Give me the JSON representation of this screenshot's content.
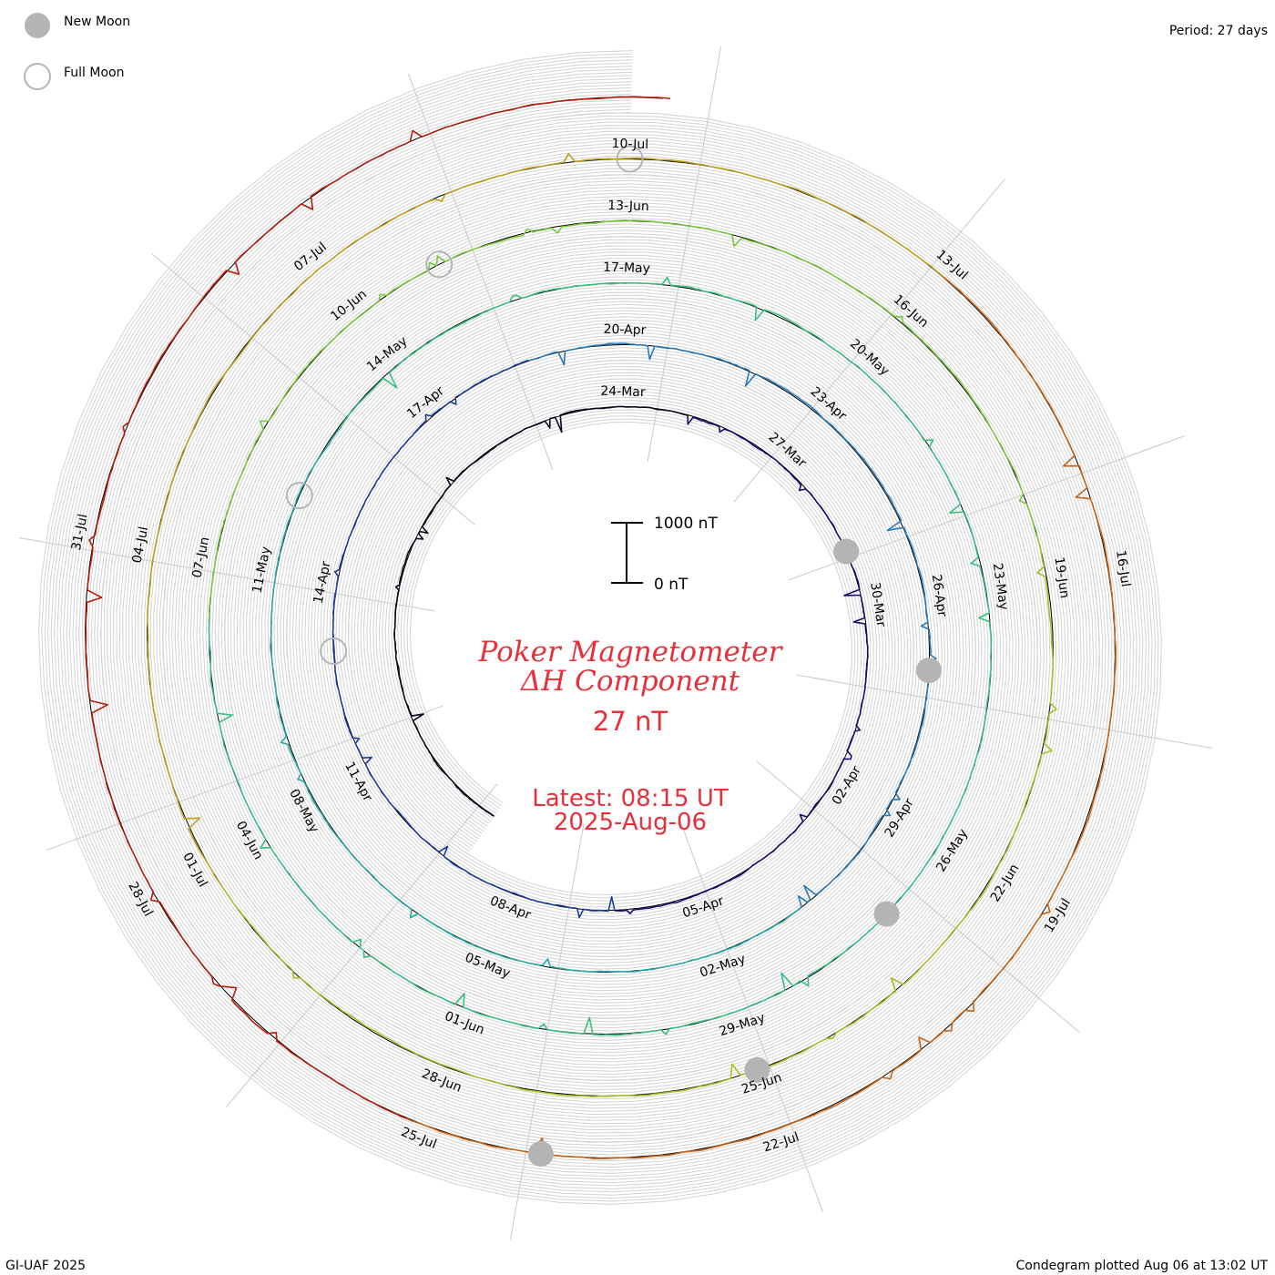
{
  "header": {
    "period": "Period: 27 days"
  },
  "legend": {
    "items": [
      {
        "label": "New Moon",
        "kind": "new-moon",
        "color": "#b4b4b4"
      },
      {
        "label": "Full Moon",
        "kind": "full-moon",
        "color": "#b4b4b4"
      }
    ]
  },
  "footer": {
    "credit": "GI-UAF 2025",
    "plotted": "Condegram plotted Aug 06 at 13:02 UT"
  },
  "chart_data": {
    "type": "condegram-spiral-line",
    "title_line1": "Poker Magnetometer",
    "title_line2": "ΔH Component",
    "current_value": "27 nT",
    "latest_time": "Latest: 08:15 UT",
    "latest_date": "2025-Aug-06",
    "scale_bar": {
      "top_label": "1000 nT",
      "bottom_label": "0 nT",
      "range_nT": [
        0,
        1000
      ]
    },
    "period_days": 27,
    "start_date": "2025-03-13",
    "end_date": "2025-08-06",
    "series_colors": [
      "#0a0a1e",
      "#1e0a6e",
      "#1e3c9c",
      "#2a7ab8",
      "#28a8a4",
      "#3cbe82",
      "#78c83c",
      "#a8be28",
      "#c0a020",
      "#c86414",
      "#b41e0a"
    ],
    "date_labels": [
      "24-Mar",
      "27-Mar",
      "30-Mar",
      "02-Apr",
      "05-Apr",
      "08-Apr",
      "11-Apr",
      "14-Apr",
      "17-Apr",
      "20-Apr",
      "23-Apr",
      "26-Apr",
      "29-Apr",
      "02-May",
      "05-May",
      "08-May",
      "11-May",
      "14-May",
      "17-May",
      "20-May",
      "23-May",
      "26-May",
      "29-May",
      "01-Jun",
      "04-Jun",
      "07-Jun",
      "10-Jun",
      "13-Jun",
      "16-Jun",
      "19-Jun",
      "22-Jun",
      "25-Jun",
      "28-Jun",
      "01-Jul",
      "04-Jul",
      "07-Jul",
      "10-Jul",
      "13-Jul",
      "16-Jul",
      "19-Jul",
      "22-Jul",
      "25-Jul",
      "28-Jul",
      "31-Jul"
    ],
    "new_moons": [
      "2025-03-29",
      "2025-04-27",
      "2025-05-27",
      "2025-06-25",
      "2025-07-24"
    ],
    "full_moons": [
      "2025-04-13",
      "2025-05-12",
      "2025-06-11",
      "2025-07-10"
    ]
  }
}
